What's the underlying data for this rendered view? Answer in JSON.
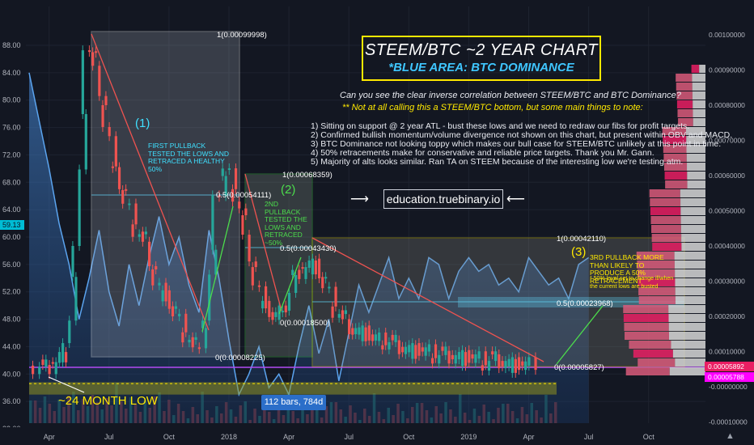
{
  "chart_data": {
    "type": "line",
    "title": "STEEM/BTC ~2 YEAR CHART",
    "subtitle": "*BLUE AREA: BTC DOMINANCE",
    "x_tick_labels": [
      "Apr",
      "Jul",
      "Oct",
      "2018",
      "Apr",
      "Jul",
      "Oct",
      "2019",
      "Apr",
      "Jul",
      "Oct"
    ],
    "left_axis_labels": [
      "88.00",
      "84.00",
      "80.00",
      "76.00",
      "72.00",
      "68.00",
      "64.00",
      "60.00",
      "56.00",
      "52.00",
      "48.00",
      "44.00",
      "40.00",
      "36.00",
      "32.00"
    ],
    "right_axis_labels": [
      "0.00100000",
      "0.00090000",
      "0.00080000",
      "0.00070000",
      "0.00060000",
      "0.00050000",
      "0.00040000",
      "0.00030000",
      "0.00020000",
      "0.00010000",
      "-0.00000000",
      "-0.00010000"
    ],
    "left_price_tag": "59.13",
    "right_price_tags": [
      "0.00005892",
      "0.00005788"
    ],
    "btc_dominance": {
      "name": "BTC DOMINANCE",
      "color": "#5ba4ef",
      "x_months": [
        0,
        1,
        1.5,
        2,
        2.5,
        3,
        3.5,
        4,
        4.5,
        5,
        5.5,
        6,
        6.5,
        7,
        7.5,
        8,
        8.5,
        9,
        9.5,
        10,
        10.5,
        11,
        11.5,
        12,
        12.5,
        13,
        13.5,
        14,
        14.5,
        15,
        15.5,
        16,
        16.5,
        17,
        17.5,
        18,
        18.5,
        19,
        19.5,
        20,
        20.5,
        21,
        21.5,
        22,
        22.5,
        23,
        23.5,
        24,
        24.5,
        25,
        25.5,
        26,
        26.5,
        27,
        27.5,
        28
      ],
      "values": [
        84,
        70,
        62,
        56,
        48,
        54,
        61,
        52,
        47,
        56,
        50,
        57,
        63,
        56,
        60,
        53,
        49,
        61,
        54,
        45,
        37,
        40,
        44,
        38,
        40,
        37,
        44,
        50,
        43,
        48,
        39,
        46,
        53,
        49,
        53,
        57,
        51,
        54,
        51,
        57,
        56,
        51,
        55,
        57,
        55,
        56,
        53,
        54,
        52,
        57,
        55,
        53,
        54,
        51,
        56,
        57
      ]
    },
    "steem_btc": {
      "name": "STEEM/BTC",
      "x_months": [
        0,
        0.5,
        1,
        1.5,
        2,
        2.5,
        3,
        3.5,
        4,
        4.5,
        5,
        5.5,
        6,
        6.5,
        7,
        7.5,
        8,
        8.5,
        9,
        9.5,
        10,
        10.5,
        11,
        11.5,
        12,
        12.5,
        13,
        13.5,
        14,
        14.5,
        15,
        15.5,
        16,
        16.5,
        17,
        17.5,
        18,
        18.5,
        19,
        19.5,
        20,
        20.5,
        21,
        21.5,
        22,
        22.5,
        23,
        23.5,
        24,
        24.5
      ],
      "values": [
        6e-05,
        5e-05,
        8e-05,
        0.0001,
        0.0004,
        0.00098,
        0.0009,
        0.00075,
        0.0006,
        0.00052,
        0.00045,
        0.0004,
        0.0003,
        0.00025,
        0.0002,
        0.00015,
        0.0001,
        0.0002,
        0.00052,
        0.00062,
        0.00055,
        0.00042,
        0.0003,
        0.00022,
        0.00019,
        0.00024,
        0.00032,
        0.00035,
        0.00034,
        0.00028,
        0.00022,
        0.00018,
        0.00016,
        0.00015,
        0.00013,
        0.00013,
        0.00012,
        0.00011,
        0.0001,
        0.0001,
        9e-05,
        9e-05,
        9e-05,
        8e-05,
        8e-05,
        7e-05,
        8e-05,
        7e-05,
        6e-05,
        6e-05
      ]
    },
    "fib_zones": [
      {
        "label_top": "1(0.00099998)",
        "label_mid": "0.5(0.00054111)",
        "label_bottom": "0(0.00008225)",
        "number": "(1)",
        "border": "#ffffff"
      },
      {
        "label_top": "1(0.00068359)",
        "label_mid": "0.5(0.00043430)",
        "label_bottom": "0(0.00018500)",
        "number": "(2)",
        "border": "#4cdd4c"
      },
      {
        "label_top": "1(0.00042110)",
        "label_mid": "0.5(0.00023968)",
        "label_bottom": "0(0.00005827)",
        "number": "(3)",
        "border": "#ffe900"
      }
    ],
    "annotations": [
      "FIRST PULLBACK TESTED THE LOWS AND RETRACED A HEALTHY 50%",
      "2ND PULLBACK TESTED THE LOWS AND RETRACED ~50%",
      "3RD PULLBACK MORE THAN LIKELY TO PRODUCE A 50% RETRACEMENT",
      "* 50% level set to change if/when the current lows are busted"
    ],
    "low_label": "~24 MONTH LOW",
    "bars_info": "112 bars, 784d",
    "grid": true,
    "legend": "none"
  },
  "notes": {
    "question": "Can you see the clear inverse correlation between STEEM/BTC and BTC Dominance?",
    "headline": "** Not at all calling this a STEEM/BTC bottom, but some main things to note:",
    "points": [
      "1) Sitting on support @ 2 year ATL - bust these lows and we need to redraw our fibs for profit targets.",
      "2) Confirmed bullish momentum/volume divergence not shown on this chart, but present within OBV and MACD.",
      "3) BTC Dominance not looking toppy which makes our bull case for STEEM/BTC unlikely at this point in time.",
      "4) 50% retracements make for conservative and reliable price targets. Thank you Mr. Gann.",
      "5) Majority of alts looks similar.  Ran TA on STEEM because of the interesting low we're testing atm."
    ],
    "watermark": "education.truebinary.io"
  },
  "colors": {
    "background": "#131722",
    "dominance": "#5ba4ef",
    "up_candle": "#26a69a",
    "down_candle": "#ef5350",
    "zone1": "#ffffff",
    "zone2": "#4cdd4c",
    "zone3": "#ffe900",
    "tag_pink": "#e91e63",
    "tag_magenta": "#ff00ff",
    "tag_cyan": "#00bcd4"
  },
  "icons": [
    "arrow-left-icon",
    "arrow-right-icon",
    "tradingview-logo-icon"
  ]
}
